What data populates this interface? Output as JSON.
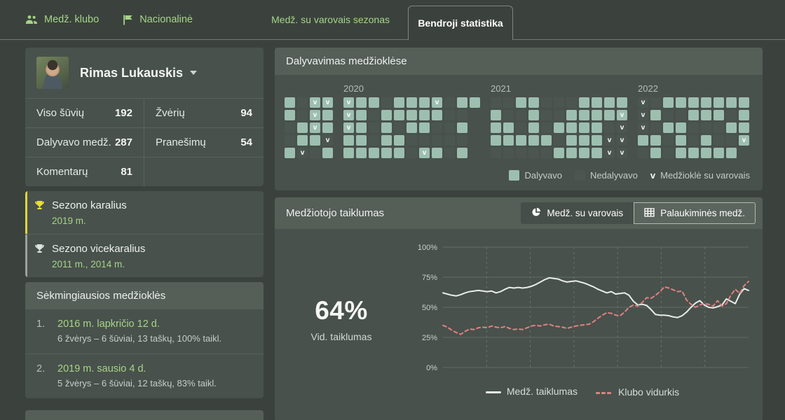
{
  "nav": {
    "items": [
      {
        "label": "Medž. klubo",
        "icon": "people-icon"
      },
      {
        "label": "Nacionalinė",
        "icon": "flag-icon"
      }
    ],
    "tabs": [
      {
        "label": "Medž. su varovais sezonas",
        "active": false
      },
      {
        "label": "Bendroji statistika",
        "active": true
      }
    ]
  },
  "profile": {
    "name": "Rimas Lukauskis",
    "caret_icon": "caret-down-icon",
    "stats": [
      {
        "label": "Viso šūvių",
        "value": "192"
      },
      {
        "label": "Žvėrių",
        "value": "94"
      },
      {
        "label": "Dalyvavo medž.",
        "value": "287"
      },
      {
        "label": "Pranešimų",
        "value": "54"
      },
      {
        "label": "Komentarų",
        "value": "81"
      },
      {
        "label": "",
        "value": ""
      }
    ]
  },
  "awards": [
    {
      "title": "Sezono karalius",
      "years": "2019 m.",
      "type": "gold",
      "icon": "trophy-icon",
      "accent_color": "#ded63a"
    },
    {
      "title": "Sezono vicekaralius",
      "years": "2011 m., 2014 m.",
      "type": "silver",
      "icon": "trophy-icon",
      "accent_color": "#99a19a"
    }
  ],
  "best_hunts": {
    "title": "Sėkmingiausios medžioklės",
    "items": [
      {
        "rank": "1.",
        "date": "2016 m. lapkričio 12 d.",
        "details": "6 žvėrys – 6 šūviai, 13 taškų, 100% taikl."
      },
      {
        "rank": "2.",
        "date": "2019 m. sausio 4 d.",
        "details": "5 žvėrys – 6 šūviai, 12 taškų, 83% taikl."
      }
    ]
  },
  "participation": {
    "title": "Dalyvavimas medžioklėse",
    "cell_colors": {
      "participated": "#9dbfb0",
      "not_participated": "#4c5650"
    },
    "legend": {
      "participated": "Dalyvavo",
      "not_participated": "Nedalyvavo",
      "v_marker": "v",
      "v_label": "Medžioklė su varovais"
    },
    "years": [
      {
        "label": "",
        "rows": [
          [
            "p",
            "n",
            "pv",
            "pv"
          ],
          [
            "p",
            "n",
            "pv",
            "p"
          ],
          [
            "n",
            "p",
            "pv",
            "p"
          ],
          [
            "n",
            "p",
            "p",
            "nv"
          ],
          [
            "p",
            "nv",
            "n",
            "p"
          ]
        ]
      },
      {
        "label": "2020",
        "rows": [
          [
            "pv",
            "p",
            "p",
            "n",
            "p",
            "p",
            "p",
            "pv",
            "n",
            "p",
            "p"
          ],
          [
            "pv",
            "p",
            "n",
            "p",
            "p",
            "p",
            "p",
            "p",
            "n",
            "n"
          ],
          [
            "pv",
            "p",
            "n",
            "p",
            "n",
            "p",
            "p",
            "n",
            "n",
            "p"
          ],
          [
            "p",
            "p",
            "n",
            "p",
            "p",
            "n",
            "n",
            "n",
            "n",
            "n"
          ],
          [
            "p",
            "p",
            "p",
            "p",
            "p",
            "n",
            "pv",
            "p",
            "n",
            "p"
          ]
        ]
      },
      {
        "label": "2021",
        "rows": [
          [
            "n",
            "n",
            "p",
            "p",
            "n",
            "n",
            "n",
            "p",
            "p",
            "p",
            "p"
          ],
          [
            "p",
            "n",
            "n",
            "p",
            "n",
            "n",
            "p",
            "p",
            "p",
            "p",
            "pv"
          ],
          [
            "p",
            "p",
            "n",
            "p",
            "n",
            "p",
            "p",
            "p",
            "p",
            "n",
            "nv"
          ],
          [
            "p",
            "p",
            "p",
            "p",
            "p",
            "n",
            "p",
            "p",
            "p",
            "nv",
            "nv"
          ],
          [
            "n",
            "n",
            "n",
            "n",
            "n",
            "p",
            "p",
            "p",
            "p",
            "nv",
            "nv"
          ]
        ]
      },
      {
        "label": "2022",
        "rows": [
          [
            "nv",
            "n",
            "p",
            "p",
            "p",
            "p",
            "p",
            "p",
            "p"
          ],
          [
            "nv",
            "p",
            "n",
            "n",
            "p",
            "p",
            "p",
            "n",
            "p"
          ],
          [
            "nv",
            "n",
            "p",
            "p",
            "n",
            "n",
            "n",
            "p",
            "p"
          ],
          [
            "p",
            "p",
            "n",
            "p",
            "n",
            "p",
            "n",
            "n",
            "pv"
          ],
          [
            "n",
            "p",
            "n",
            "p",
            "p",
            "p",
            "p",
            "p"
          ]
        ]
      }
    ]
  },
  "accuracy": {
    "title": "Medžiotojo taiklumas",
    "toggle": [
      {
        "label": "Medž. su varovais",
        "icon": "pie-chart-icon",
        "active": true
      },
      {
        "label": "Palaukiminės medž.",
        "icon": "table-icon",
        "active": false
      }
    ],
    "average": "64%",
    "average_label": "Vid. taiklumas",
    "chart_data": {
      "type": "line",
      "title": "",
      "xlabel": "",
      "ylabel": "",
      "ylim": [
        0,
        100
      ],
      "y_ticks": [
        {
          "label": "100%",
          "value": 100
        },
        {
          "label": "75%",
          "value": 75
        },
        {
          "label": "50%",
          "value": 50
        },
        {
          "label": "25%",
          "value": 25
        },
        {
          "label": "0%",
          "value": 0
        }
      ],
      "grid": {
        "horizontal": "solid",
        "vertical": "dashed",
        "vertical_count": 6
      },
      "legend_position": "bottom",
      "series": [
        {
          "name": "Medž. taiklumas",
          "style": "solid",
          "color": "#e9eceb",
          "values": [
            62,
            61,
            60,
            59.5,
            60.5,
            62,
            63,
            63.5,
            64,
            63.5,
            63,
            63.5,
            62,
            63,
            65,
            66.5,
            66,
            66.5,
            66,
            66.5,
            67.5,
            69,
            71,
            73,
            74.5,
            74,
            73.5,
            72,
            71,
            71.5,
            72,
            71,
            70,
            68.5,
            67,
            65,
            63.5,
            62,
            63,
            61,
            61.5,
            62,
            60,
            55,
            52,
            52.5,
            51.5,
            48,
            44,
            43.5,
            43.5,
            43,
            42,
            41.5,
            43,
            46,
            50,
            53.5,
            55.5,
            52,
            50,
            49.5,
            50.5,
            52,
            57,
            55,
            53,
            61,
            65.5,
            64
          ]
        },
        {
          "name": "Klubo vidurkis",
          "style": "dashed",
          "color": "#e08184",
          "values": [
            35,
            33.5,
            31,
            29,
            27.5,
            30,
            32,
            31.5,
            33,
            33.5,
            33,
            34.5,
            33.5,
            33,
            34,
            32.5,
            31.5,
            32,
            31.5,
            33,
            34.5,
            35,
            34.5,
            35.5,
            36,
            34.5,
            34,
            33.5,
            32.5,
            33.5,
            34.5,
            35,
            35.5,
            36,
            38,
            41,
            43.5,
            45.5,
            45,
            43.5,
            43,
            46,
            50,
            52,
            51,
            54,
            58,
            57.5,
            60,
            63,
            67,
            66,
            64.5,
            63,
            63.5,
            56,
            52.5,
            50,
            52,
            53,
            52.5,
            51,
            55.5,
            51,
            53,
            60,
            65,
            61.5,
            68,
            71.5
          ]
        }
      ]
    }
  }
}
